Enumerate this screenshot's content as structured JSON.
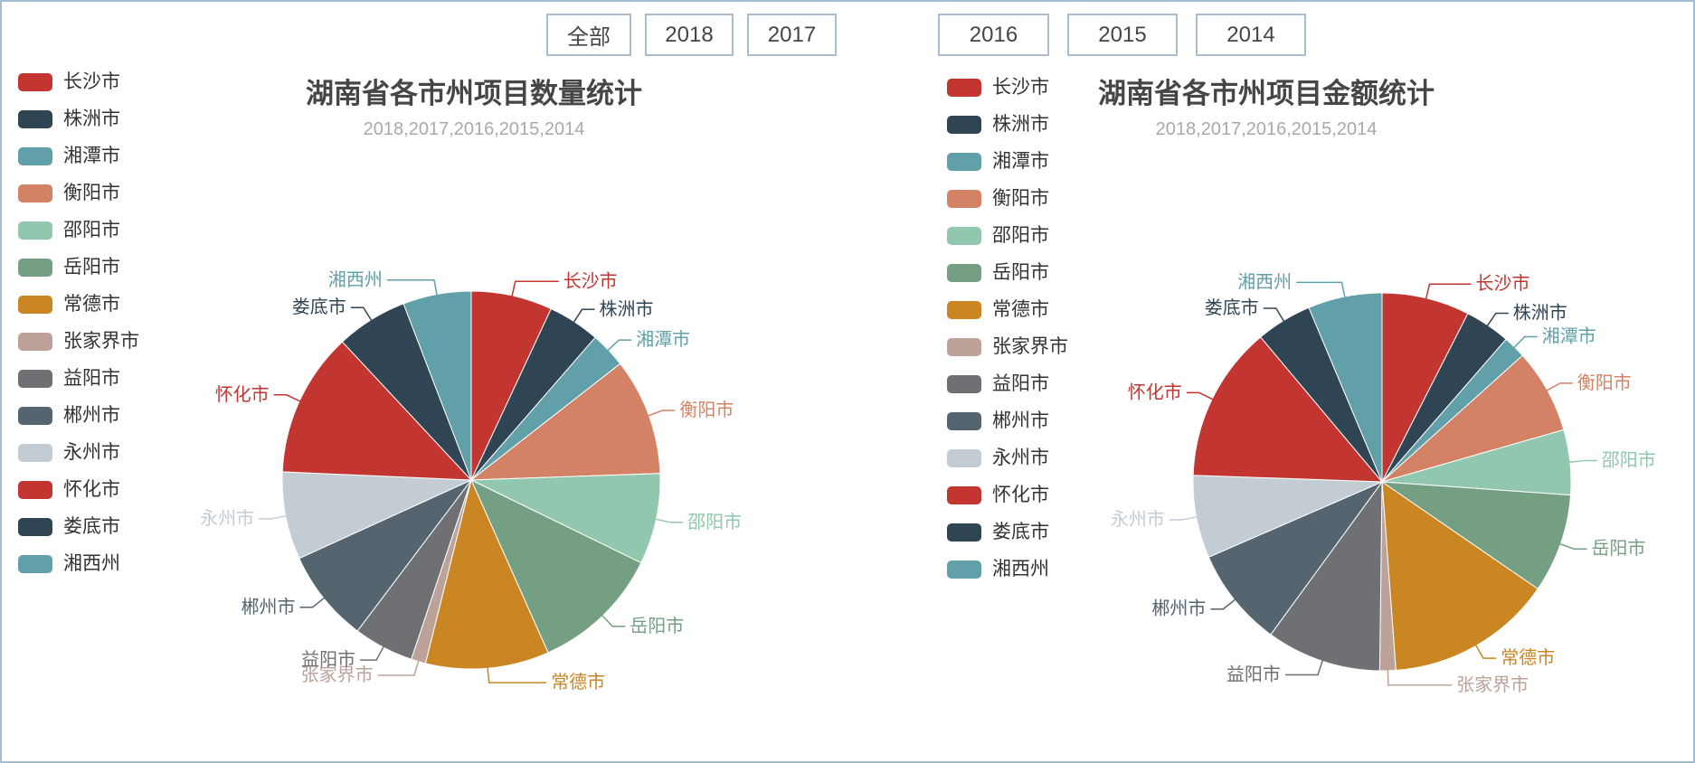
{
  "toolbar": {
    "buttons": [
      {
        "label": "全部"
      },
      {
        "label": "2018"
      },
      {
        "label": "2017"
      },
      {
        "label": "2016"
      },
      {
        "label": "2015"
      },
      {
        "label": "2014"
      }
    ]
  },
  "palette": [
    "#c23531",
    "#2f4554",
    "#61a0a8",
    "#d48265",
    "#91c7ae",
    "#749f83",
    "#ca8622",
    "#bda29a",
    "#6e7074",
    "#546570",
    "#c4ccd3"
  ],
  "chart_data": [
    {
      "type": "pie",
      "title": "湖南省各市州项目数量统计",
      "subtitle": "2018,2017,2016,2015,2014",
      "legend_position": "left",
      "value_note": "share of total project count, % (estimated from slice angles)",
      "series": [
        {
          "name": "长沙市",
          "value_pct": 6.9,
          "angle_deg": 25.0,
          "color": "#c23531"
        },
        {
          "name": "株洲市",
          "value_pct": 4.4,
          "angle_deg": 16.0,
          "color": "#2f4554"
        },
        {
          "name": "湘潭市",
          "value_pct": 3.1,
          "angle_deg": 11.0,
          "color": "#61a0a8"
        },
        {
          "name": "衡阳市",
          "value_pct": 10.0,
          "angle_deg": 36.0,
          "color": "#d48265"
        },
        {
          "name": "邵阳市",
          "value_pct": 7.8,
          "angle_deg": 28.0,
          "color": "#91c7ae"
        },
        {
          "name": "岳阳市",
          "value_pct": 11.1,
          "angle_deg": 40.0,
          "color": "#749f83"
        },
        {
          "name": "常德市",
          "value_pct": 10.6,
          "angle_deg": 38.0,
          "color": "#ca8622"
        },
        {
          "name": "张家界市",
          "value_pct": 1.3,
          "angle_deg": 4.5,
          "color": "#bda29a"
        },
        {
          "name": "益阳市",
          "value_pct": 5.1,
          "angle_deg": 18.5,
          "color": "#6e7074"
        },
        {
          "name": "郴州市",
          "value_pct": 7.9,
          "angle_deg": 28.5,
          "color": "#546570"
        },
        {
          "name": "永州市",
          "value_pct": 7.5,
          "angle_deg": 27.0,
          "color": "#c4ccd3"
        },
        {
          "name": "怀化市",
          "value_pct": 12.4,
          "angle_deg": 44.5,
          "color": "#c23531"
        },
        {
          "name": "娄底市",
          "value_pct": 6.1,
          "angle_deg": 22.0,
          "color": "#2f4554"
        },
        {
          "name": "湘西州",
          "value_pct": 5.8,
          "angle_deg": 21.0,
          "color": "#61a0a8"
        }
      ]
    },
    {
      "type": "pie",
      "title": "湖南省各市州项目金额统计",
      "subtitle": "2018,2017,2016,2015,2014",
      "legend_position": "left",
      "value_note": "share of total project amount, % (estimated from slice angles)",
      "series": [
        {
          "name": "长沙市",
          "value_pct": 7.5,
          "angle_deg": 27.0,
          "color": "#c23531"
        },
        {
          "name": "株洲市",
          "value_pct": 3.9,
          "angle_deg": 14.0,
          "color": "#2f4554"
        },
        {
          "name": "湘潭市",
          "value_pct": 1.9,
          "angle_deg": 7.0,
          "color": "#61a0a8"
        },
        {
          "name": "衡阳市",
          "value_pct": 7.2,
          "angle_deg": 26.0,
          "color": "#d48265"
        },
        {
          "name": "邵阳市",
          "value_pct": 5.6,
          "angle_deg": 20.0,
          "color": "#91c7ae"
        },
        {
          "name": "岳阳市",
          "value_pct": 8.5,
          "angle_deg": 30.5,
          "color": "#749f83"
        },
        {
          "name": "常德市",
          "value_pct": 14.3,
          "angle_deg": 51.3,
          "color": "#ca8622"
        },
        {
          "name": "张家界市",
          "value_pct": 1.4,
          "angle_deg": 4.9,
          "color": "#bda29a"
        },
        {
          "name": "益阳市",
          "value_pct": 9.8,
          "angle_deg": 35.4,
          "color": "#6e7074"
        },
        {
          "name": "郴州市",
          "value_pct": 8.4,
          "angle_deg": 30.4,
          "color": "#546570"
        },
        {
          "name": "永州市",
          "value_pct": 7.1,
          "angle_deg": 25.5,
          "color": "#c4ccd3"
        },
        {
          "name": "怀化市",
          "value_pct": 13.3,
          "angle_deg": 48.0,
          "color": "#c23531"
        },
        {
          "name": "娄底市",
          "value_pct": 4.8,
          "angle_deg": 17.2,
          "color": "#2f4554"
        },
        {
          "name": "湘西州",
          "value_pct": 6.3,
          "angle_deg": 22.8,
          "color": "#61a0a8"
        }
      ]
    }
  ]
}
